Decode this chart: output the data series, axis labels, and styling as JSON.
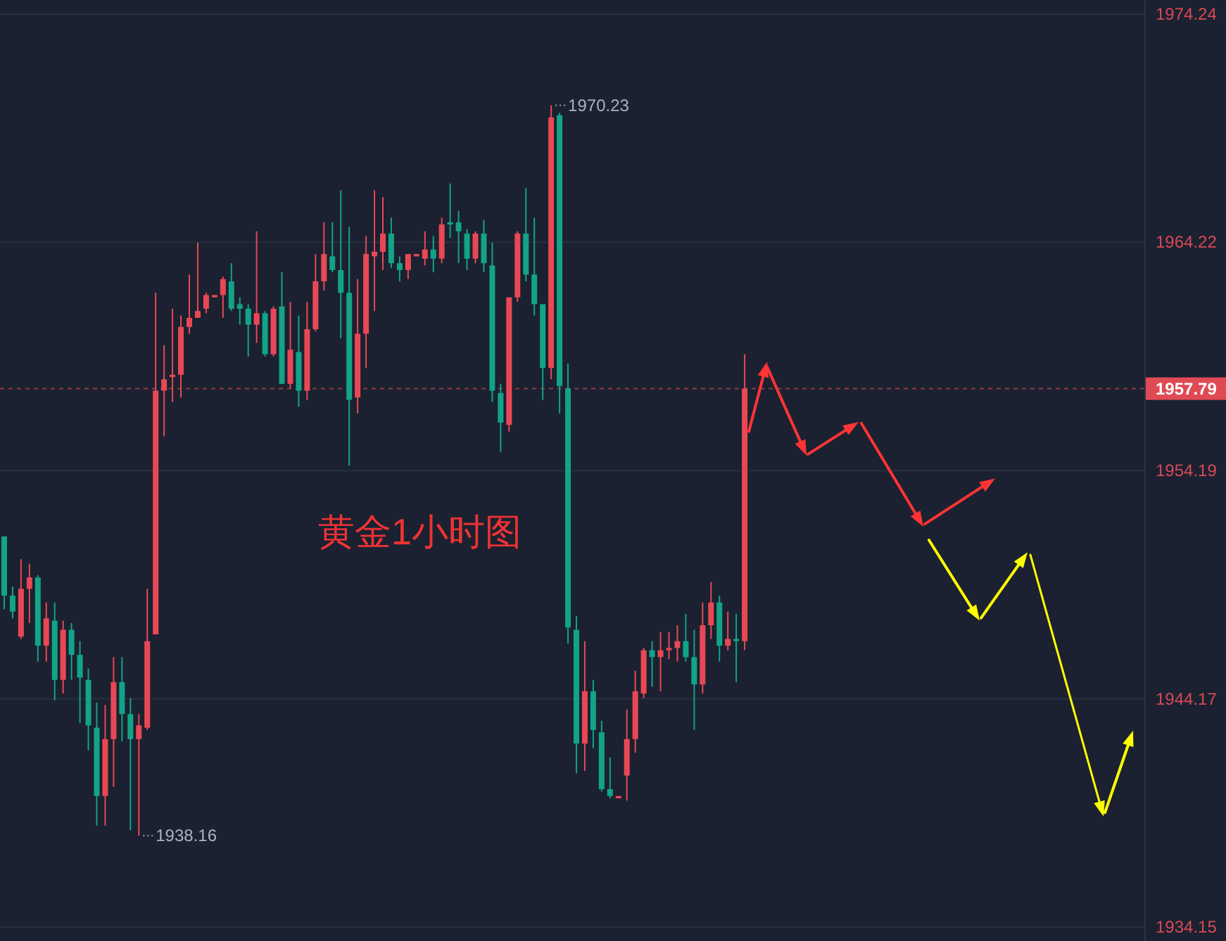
{
  "chart_data": {
    "type": "candlestick",
    "categories": [
      null,
      null,
      null,
      null,
      null,
      null,
      null,
      null,
      null,
      null,
      null,
      null,
      null,
      null,
      null,
      null,
      null,
      null,
      null,
      null,
      null,
      null,
      null,
      null,
      null,
      null,
      null,
      null,
      null,
      null,
      null,
      null,
      null,
      null,
      null,
      null,
      null,
      null,
      null,
      null,
      null,
      null,
      null,
      null,
      null,
      null,
      null,
      null,
      null,
      null,
      null,
      null,
      null,
      null,
      null,
      null,
      null,
      null,
      null,
      null,
      null,
      null,
      null,
      null,
      null,
      null,
      null,
      null,
      null,
      null,
      null,
      null,
      null,
      null,
      null,
      null,
      null,
      null,
      null,
      null,
      null,
      null,
      null,
      null,
      null,
      null,
      null,
      null,
      null,
      null,
      null,
      null,
      null,
      null,
      null,
      null,
      null,
      null,
      null,
      null,
      null,
      null,
      null,
      null,
      null,
      null,
      null,
      null,
      null,
      null,
      null,
      null,
      null,
      null,
      null,
      null,
      null,
      null,
      null,
      null,
      null,
      null,
      null,
      null,
      null,
      null,
      null,
      null,
      null,
      null,
      null,
      null,
      null,
      null,
      null,
      null
    ],
    "ohlc": [
      [
        1951.3,
        1951.3,
        1948.1,
        1948.7
      ],
      [
        1948.7,
        1949.1,
        1947.7,
        1948.0
      ],
      [
        1946.9,
        1950.3,
        1946.8,
        1949.0
      ],
      [
        1949.0,
        1950.1,
        1947.5,
        1949.5
      ],
      [
        1949.5,
        1949.6,
        1945.8,
        1946.5
      ],
      [
        1946.5,
        1948.4,
        1945.8,
        1947.7
      ],
      [
        1947.6,
        1948.4,
        1944.1,
        1945.0
      ],
      [
        1945.0,
        1947.6,
        1944.4,
        1947.2
      ],
      [
        1947.2,
        1947.5,
        1945.0,
        1946.1
      ],
      [
        1946.1,
        1946.7,
        1943.1,
        1945.1
      ],
      [
        1945.0,
        1945.5,
        1941.9,
        1943.0
      ],
      [
        1942.9,
        1944.0,
        1938.6,
        1939.9
      ],
      [
        1939.9,
        1943.9,
        1938.6,
        1942.4
      ],
      [
        1942.4,
        1946.0,
        1940.3,
        1944.9
      ],
      [
        1944.9,
        1946.0,
        1942.3,
        1943.5
      ],
      [
        1943.5,
        1944.2,
        1938.4,
        1942.4
      ],
      [
        1942.4,
        1943.5,
        1938.16,
        1943.0
      ],
      [
        1942.9,
        1949.0,
        1942.8,
        1946.7
      ],
      [
        1947.0,
        1962.0,
        1947.0,
        1957.7
      ],
      [
        1957.7,
        1959.7,
        1955.7,
        1958.2
      ],
      [
        1958.3,
        1961.3,
        1957.2,
        1958.4
      ],
      [
        1958.4,
        1961.0,
        1957.4,
        1960.5
      ],
      [
        1960.5,
        1962.8,
        1960.2,
        1960.9
      ],
      [
        1960.9,
        1964.2,
        1960.9,
        1961.2
      ],
      [
        1961.3,
        1962.0,
        1961.1,
        1961.9
      ],
      [
        1961.8,
        1961.9,
        1961.8,
        1961.9
      ],
      [
        1961.9,
        1962.7,
        1960.9,
        1962.6
      ],
      [
        1962.5,
        1963.3,
        1961.2,
        1961.3
      ],
      [
        1961.5,
        1961.8,
        1960.6,
        1961.3
      ],
      [
        1961.3,
        1961.5,
        1959.2,
        1960.6
      ],
      [
        1960.6,
        1964.7,
        1959.8,
        1961.1
      ],
      [
        1961.1,
        1961.2,
        1959.2,
        1959.3
      ],
      [
        1959.3,
        1961.4,
        1959.2,
        1961.3
      ],
      [
        1961.4,
        1962.9,
        1958.0,
        1958.0
      ],
      [
        1958.0,
        1961.6,
        1957.8,
        1959.5
      ],
      [
        1959.4,
        1961.0,
        1957.0,
        1957.7
      ],
      [
        1957.7,
        1961.6,
        1957.3,
        1960.4
      ],
      [
        1960.4,
        1963.7,
        1960.3,
        1962.5
      ],
      [
        1962.5,
        1965.1,
        1962.1,
        1963.7
      ],
      [
        1963.6,
        1965.1,
        1962.9,
        1963.0
      ],
      [
        1963.0,
        1966.5,
        1960.0,
        1962.0
      ],
      [
        1962.0,
        1964.9,
        1954.4,
        1957.3
      ],
      [
        1957.4,
        1962.6,
        1956.7,
        1960.2
      ],
      [
        1960.2,
        1964.5,
        1958.7,
        1963.7
      ],
      [
        1963.6,
        1966.5,
        1961.2,
        1963.8
      ],
      [
        1963.8,
        1966.2,
        1963.0,
        1964.6
      ],
      [
        1964.6,
        1965.3,
        1963.1,
        1963.3
      ],
      [
        1963.3,
        1963.6,
        1962.5,
        1963.0
      ],
      [
        1963.0,
        1963.7,
        1962.6,
        1963.7
      ],
      [
        1963.6,
        1963.7,
        1963.6,
        1963.7
      ],
      [
        1963.5,
        1964.7,
        1963.2,
        1963.9
      ],
      [
        1963.9,
        1964.5,
        1962.9,
        1963.5
      ],
      [
        1963.5,
        1965.3,
        1963.3,
        1965.0
      ],
      [
        1965.1,
        1966.8,
        1964.4,
        1965.0
      ],
      [
        1965.1,
        1965.6,
        1963.3,
        1964.7
      ],
      [
        1964.6,
        1964.8,
        1963.0,
        1963.5
      ],
      [
        1963.5,
        1964.7,
        1963.3,
        1964.6
      ],
      [
        1964.6,
        1965.2,
        1962.9,
        1963.3
      ],
      [
        1963.2,
        1964.2,
        1957.2,
        1957.7
      ],
      [
        1957.6,
        1958.0,
        1955.0,
        1956.3
      ],
      [
        1956.2,
        1961.8,
        1955.9,
        1961.8
      ],
      [
        1961.8,
        1964.7,
        1961.6,
        1964.6
      ],
      [
        1964.6,
        1966.6,
        1962.5,
        1962.8
      ],
      [
        1962.8,
        1965.3,
        1961.0,
        1961.5
      ],
      [
        1961.5,
        1961.5,
        1957.3,
        1958.7
      ],
      [
        1958.7,
        1970.23,
        1958.2,
        1969.7
      ],
      [
        1969.8,
        1969.9,
        1956.7,
        1957.9
      ],
      [
        1957.8,
        1958.9,
        1946.6,
        1947.3
      ],
      [
        1947.2,
        1947.8,
        1940.9,
        1942.2
      ],
      [
        1942.2,
        1946.7,
        1941.0,
        1944.5
      ],
      [
        1944.5,
        1945.0,
        1942.0,
        1942.8
      ],
      [
        1942.7,
        1943.2,
        1940.1,
        1940.2
      ],
      [
        1940.2,
        1941.6,
        1939.8,
        1939.9
      ],
      [
        1939.8,
        1939.9,
        1939.8,
        1939.9
      ],
      [
        1940.8,
        1943.7,
        1939.7,
        1942.4
      ],
      [
        1942.4,
        1945.4,
        1941.8,
        1944.5
      ],
      [
        1944.4,
        1946.4,
        1944.2,
        1946.3
      ],
      [
        1946.3,
        1946.7,
        1944.7,
        1946.0
      ],
      [
        1946.0,
        1947.1,
        1944.5,
        1946.3
      ],
      [
        1946.3,
        1947.1,
        1945.9,
        1946.4
      ],
      [
        1946.4,
        1947.4,
        1945.8,
        1946.7
      ],
      [
        1946.7,
        1947.9,
        1945.8,
        1946.0
      ],
      [
        1946.0,
        1947.2,
        1942.8,
        1944.8
      ],
      [
        1944.8,
        1948.4,
        1944.4,
        1947.4
      ],
      [
        1947.4,
        1949.3,
        1946.8,
        1948.4
      ],
      [
        1948.4,
        1948.7,
        1945.8,
        1946.5
      ],
      [
        1946.5,
        1948.0,
        1946.3,
        1946.8
      ],
      [
        1946.8,
        1947.9,
        1944.9,
        1946.7
      ],
      [
        1946.7,
        1959.3,
        1946.3,
        1957.79
      ],
      null,
      null,
      null,
      null,
      null,
      null,
      null,
      null,
      null,
      null,
      null,
      null,
      null,
      null,
      null,
      null,
      null,
      null,
      null,
      null,
      null,
      null,
      null,
      null,
      null,
      null,
      null,
      null,
      null,
      null,
      null,
      null,
      null,
      null,
      null,
      null,
      null,
      null,
      null,
      null,
      null,
      null,
      null,
      null,
      null,
      null,
      null
    ],
    "colors": [
      "#13a386",
      "#13a386",
      "#e84856",
      "#e84856",
      "#13a386",
      "#e84856",
      "#13a386",
      "#e84856",
      "#13a386",
      "#13a386",
      "#13a386",
      "#13a386",
      "#e84856",
      "#e84856",
      "#13a386",
      "#13a386",
      "#e84856",
      "#e84856",
      "#e84856",
      "#e84856",
      "#e84856",
      "#e84856",
      "#e84856",
      "#e84856",
      "#e84856",
      "#e84856",
      "#e84856",
      "#13a386",
      "#13a386",
      "#13a386",
      "#e84856",
      "#13a386",
      "#e84856",
      "#13a386",
      "#e84856",
      "#13a386",
      "#e84856",
      "#e84856",
      "#e84856",
      "#13a386",
      "#13a386",
      "#13a386",
      "#e84856",
      "#e84856",
      "#e84856",
      "#e84856",
      "#13a386",
      "#13a386",
      "#e84856",
      "#e84856",
      "#e84856",
      "#13a386",
      "#e84856",
      "#13a386",
      "#13a386",
      "#13a386",
      "#e84856",
      "#13a386",
      "#13a386",
      "#13a386",
      "#e84856",
      "#e84856",
      "#13a386",
      "#13a386",
      "#13a386",
      "#e84856",
      "#13a386",
      "#13a386",
      "#13a386",
      "#e84856",
      "#13a386",
      "#13a386",
      "#13a386",
      "#e84856",
      "#e84856",
      "#e84856",
      "#e84856",
      "#13a386",
      "#e84856",
      "#e84856",
      "#e84856",
      "#13a386",
      "#13a386",
      "#e84856",
      "#e84856",
      "#13a386",
      "#e84856",
      "#13a386",
      "#e84856",
      null,
      null,
      null,
      null,
      null,
      null,
      null,
      null,
      null,
      null,
      null,
      null,
      null,
      null,
      null,
      null,
      null,
      null,
      null,
      null,
      null,
      null,
      null,
      null,
      null,
      null,
      null,
      null,
      null,
      null,
      null,
      null,
      null,
      null,
      null,
      null,
      null,
      null,
      null,
      null,
      null,
      null,
      null,
      null,
      null,
      null,
      null
    ],
    "ylim": [
      1934.15,
      1974.24
    ],
    "yticks": [
      1934.15,
      1944.17,
      1954.19,
      1964.22,
      1974.24
    ],
    "grid": "y",
    "tick_labels": "y",
    "ref_lines": [
      {
        "axis": "y",
        "value": 1957.79,
        "label": "1957.79",
        "color": "#e04a55",
        "line_style": "dashed"
      }
    ],
    "annotations": [
      "1970.23",
      "1938.16",
      "黄金1小时图"
    ]
  }
}
